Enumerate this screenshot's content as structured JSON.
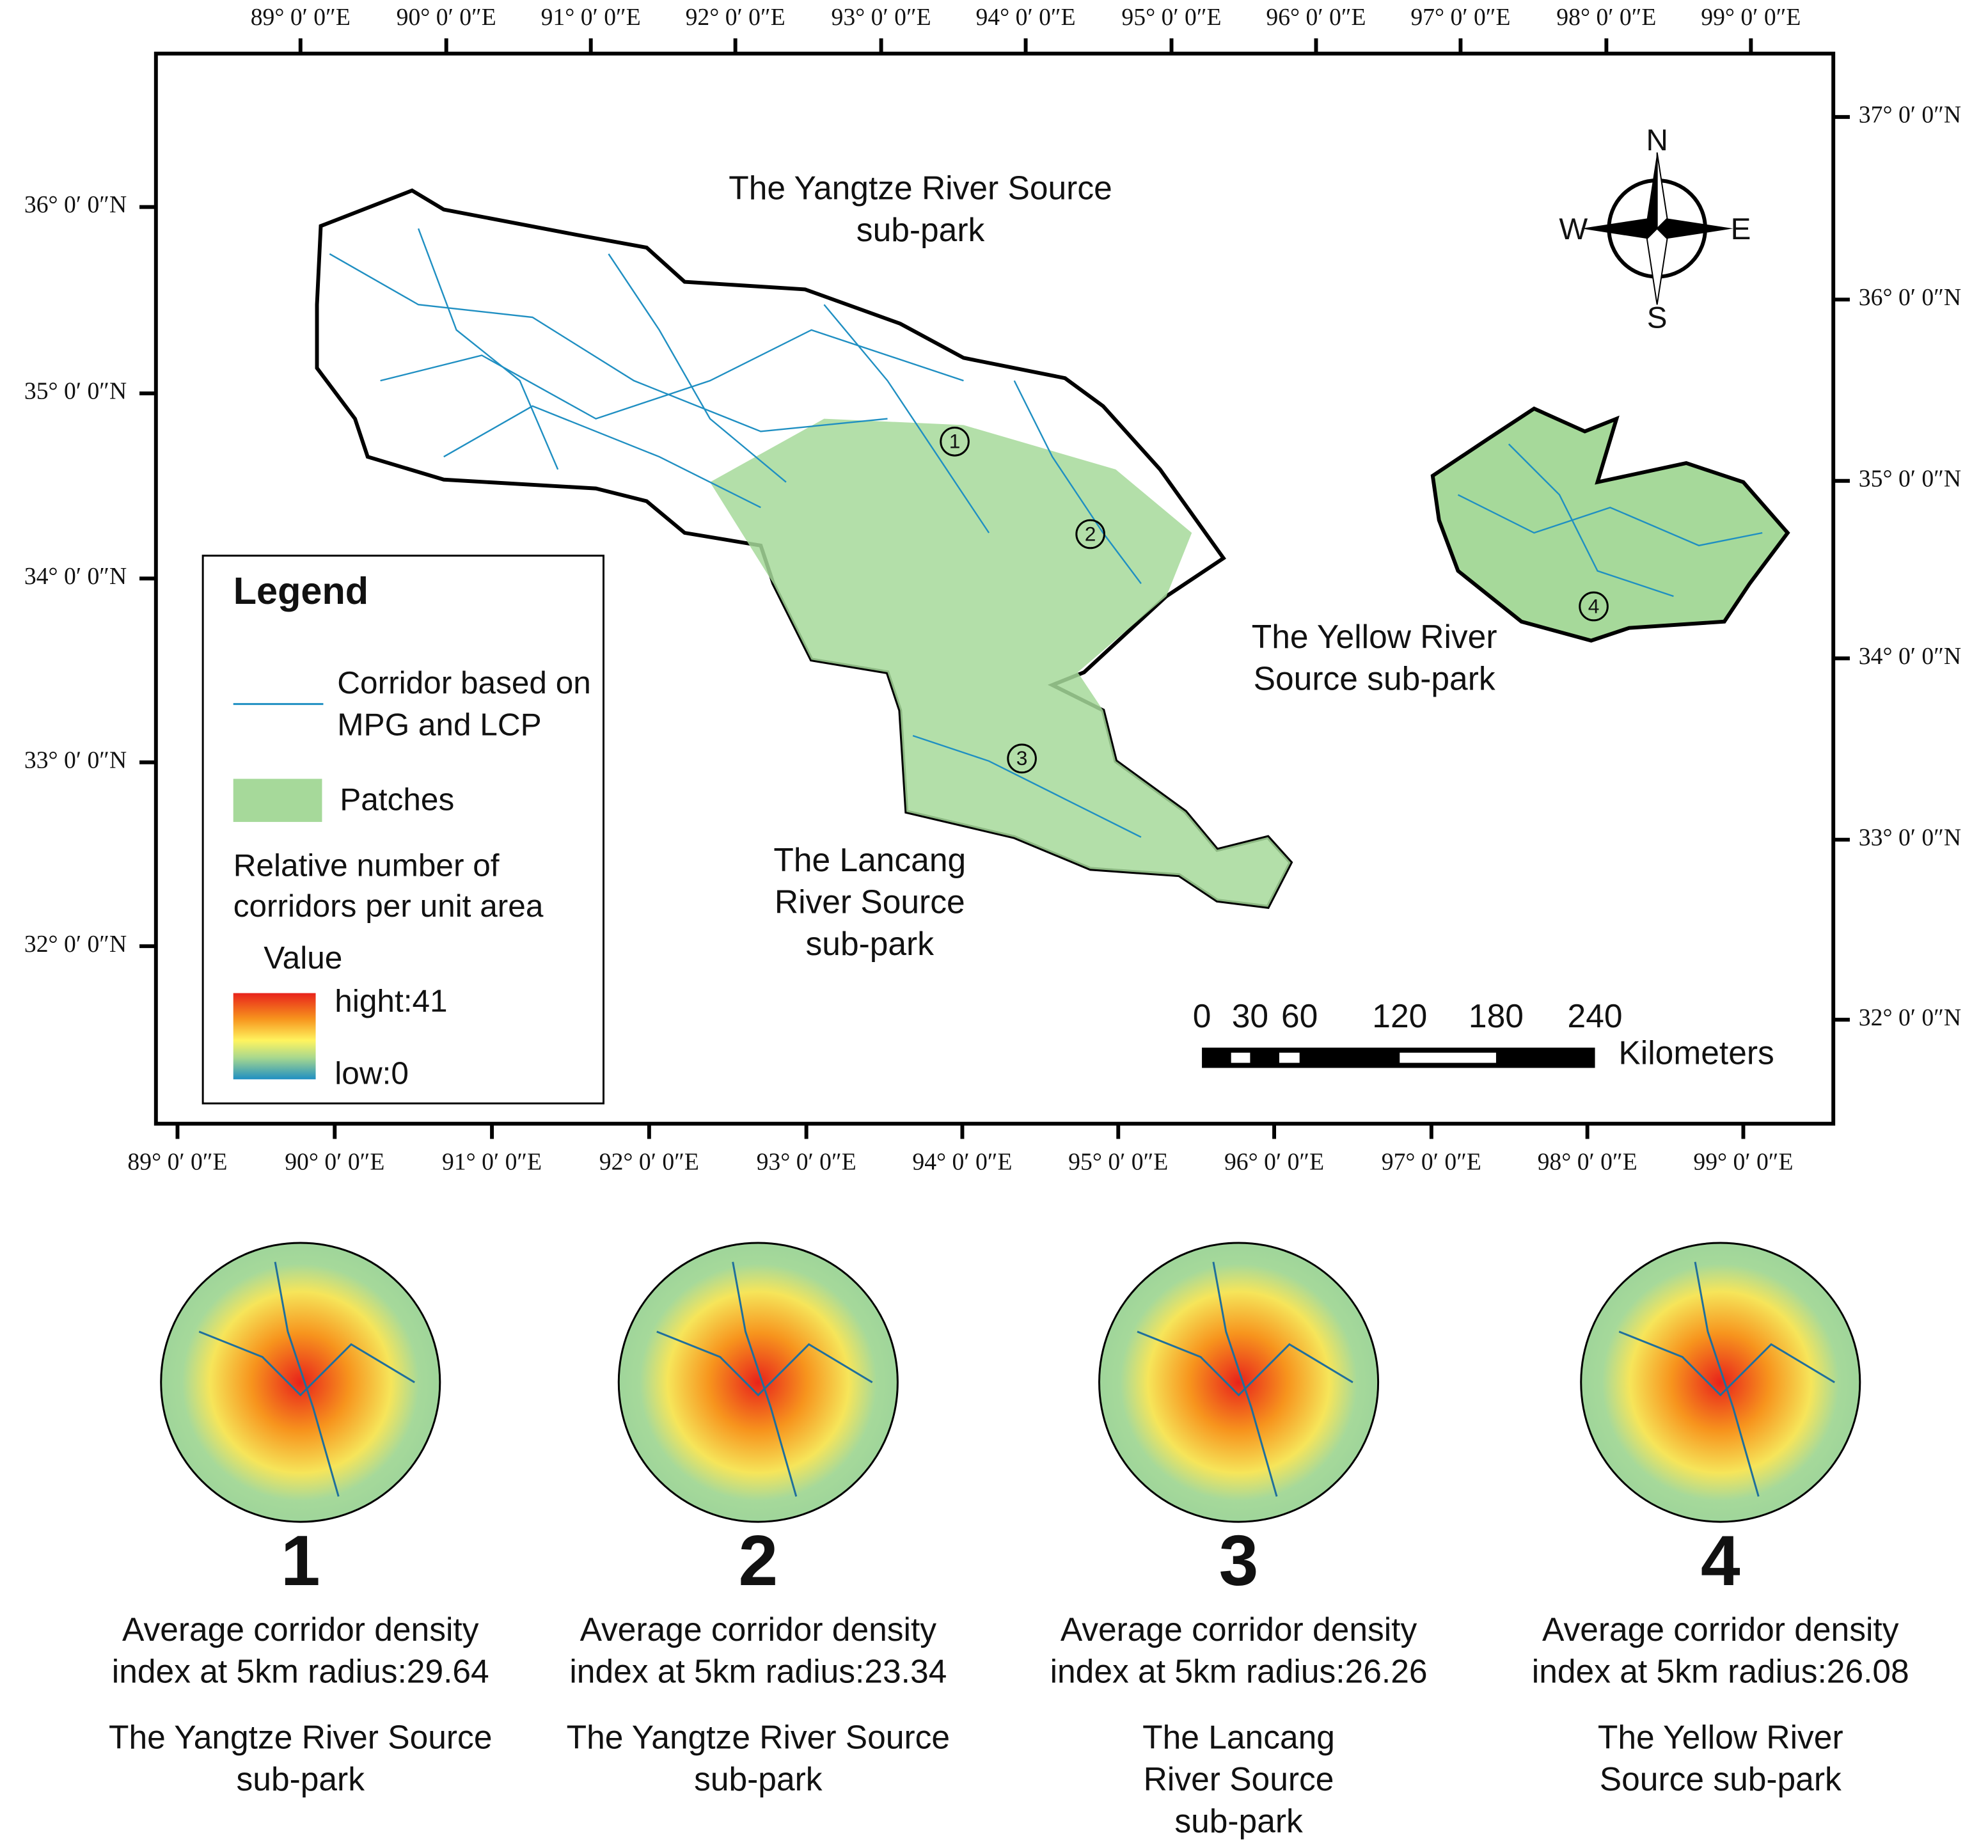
{
  "map": {
    "top_longitude_labels": [
      "89° 0′ 0″E",
      "90° 0′ 0″E",
      "91° 0′ 0″E",
      "92° 0′ 0″E",
      "93° 0′ 0″E",
      "94° 0′ 0″E",
      "95° 0′ 0″E",
      "96° 0′ 0″E",
      "97° 0′ 0″E",
      "98° 0′ 0″E",
      "99° 0′ 0″E"
    ],
    "bottom_longitude_labels": [
      "89° 0′ 0″E",
      "90° 0′ 0″E",
      "91° 0′ 0″E",
      "92° 0′ 0″E",
      "93° 0′ 0″E",
      "94° 0′ 0″E",
      "95° 0′ 0″E",
      "96° 0′ 0″E",
      "97° 0′ 0″E",
      "98° 0′ 0″E",
      "99° 0′ 0″E"
    ],
    "left_latitude_labels": [
      "36° 0′ 0″N",
      "35° 0′ 0″N",
      "34° 0′ 0″N",
      "33° 0′ 0″N",
      "32° 0′ 0″N"
    ],
    "right_latitude_labels": [
      "37° 0′ 0″N",
      "36° 0′ 0″N",
      "35° 0′ 0″N",
      "34° 0′ 0″N",
      "33° 0′ 0″N",
      "32° 0′ 0″N"
    ],
    "region_labels": [
      [
        "The Yangtze River Source",
        "sub-park"
      ],
      [
        "The Yellow River",
        "Source sub-park"
      ],
      [
        "The Lancang",
        "River Source",
        "sub-park"
      ]
    ],
    "site_markers": [
      "1",
      "2",
      "3",
      "4"
    ],
    "compass": {
      "north": "N",
      "south": "S",
      "east": "E",
      "west": "W"
    },
    "scale_bar": {
      "ticks": [
        "0",
        "30",
        "60",
        "120",
        "180",
        "240"
      ],
      "unit": "Kilometers"
    }
  },
  "legend": {
    "title": "Legend",
    "corridor": [
      "Corridor based on",
      "MPG and LCP"
    ],
    "patches": "Patches",
    "density": [
      "Relative number of",
      "corridors per unit area"
    ],
    "value_title": "Value",
    "high": "hight:41",
    "low": "low:0"
  },
  "panels": [
    {
      "number": "1",
      "caption": [
        "Average corridor density",
        "index at 5km radius:29.64"
      ],
      "subpark": [
        "The Yangtze River Source",
        "sub-park"
      ]
    },
    {
      "number": "2",
      "caption": [
        "Average corridor density",
        "index at 5km radius:23.34"
      ],
      "subpark": [
        "The Yangtze River Source",
        "sub-park"
      ]
    },
    {
      "number": "3",
      "caption": [
        "Average corridor density",
        "index at 5km radius:26.26"
      ],
      "subpark": [
        "The Lancang",
        "River Source",
        "sub-park"
      ]
    },
    {
      "number": "4",
      "caption": [
        "Average corridor density",
        "index at 5km radius:26.08"
      ],
      "subpark": [
        "The Yellow River",
        "Source sub-park"
      ]
    }
  ]
}
